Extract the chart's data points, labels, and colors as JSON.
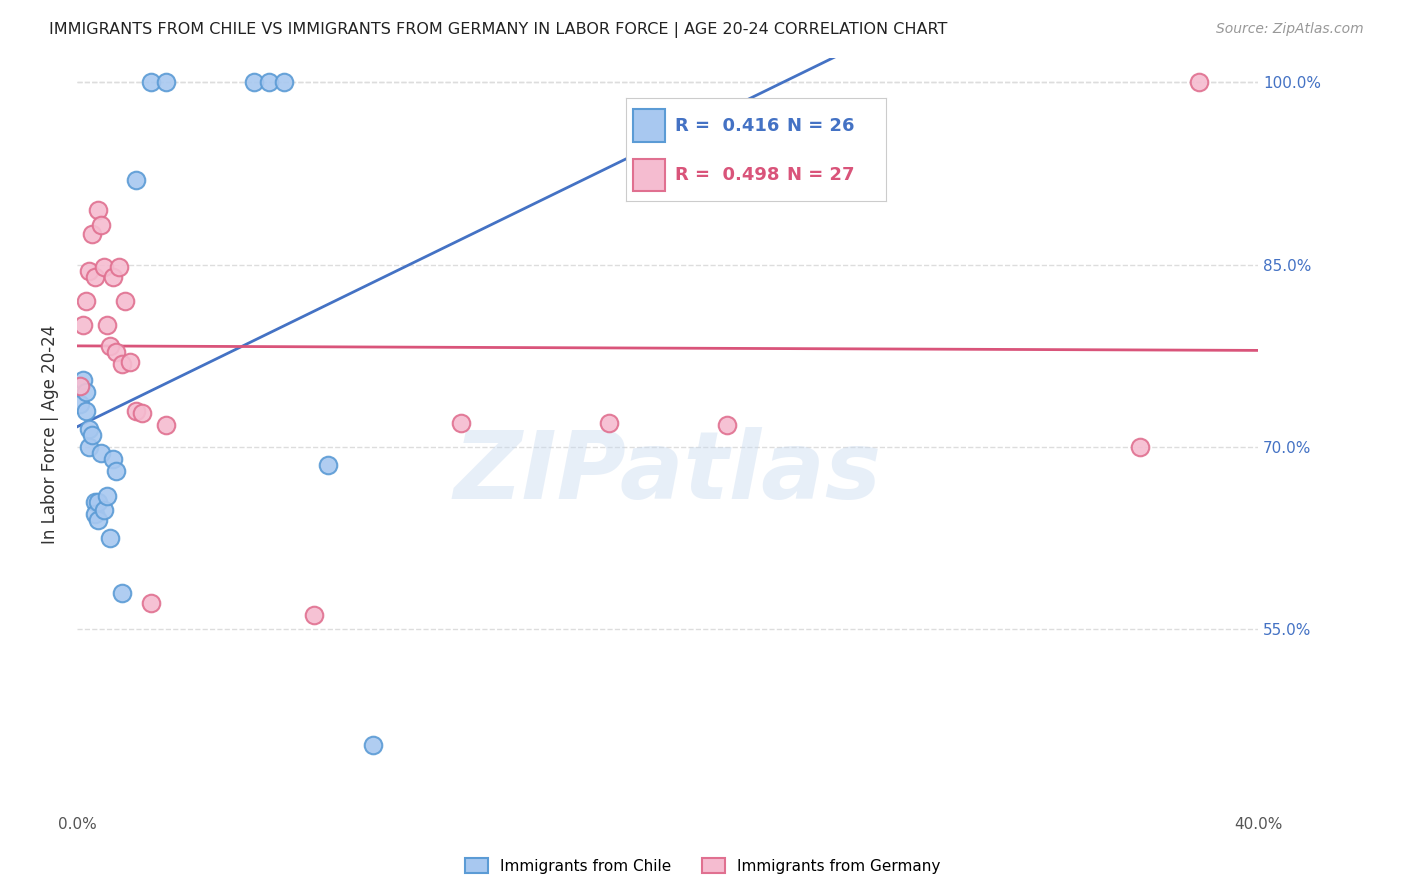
{
  "title": "IMMIGRANTS FROM CHILE VS IMMIGRANTS FROM GERMANY IN LABOR FORCE | AGE 20-24 CORRELATION CHART",
  "source": "Source: ZipAtlas.com",
  "ylabel": "In Labor Force | Age 20-24",
  "xlim": [
    0.0,
    0.4
  ],
  "ylim": [
    0.4,
    1.02
  ],
  "xticks": [
    0.0,
    0.05,
    0.1,
    0.15,
    0.2,
    0.25,
    0.3,
    0.35,
    0.4
  ],
  "xtick_labels": [
    "0.0%",
    "",
    "",
    "",
    "",
    "",
    "",
    "",
    "40.0%"
  ],
  "yticks": [
    0.55,
    0.7,
    0.85,
    1.0
  ],
  "ytick_labels": [
    "55.0%",
    "70.0%",
    "85.0%",
    "100.0%"
  ],
  "chile_fill": "#a8c8f0",
  "chile_edge": "#5b9bd5",
  "germany_fill": "#f5bcd0",
  "germany_edge": "#e07090",
  "trend_chile_color": "#4472c4",
  "trend_germany_color": "#d9547a",
  "R_chile": 0.416,
  "N_chile": 26,
  "R_germany": 0.498,
  "N_germany": 27,
  "chile_x": [
    0.001,
    0.002,
    0.003,
    0.003,
    0.004,
    0.004,
    0.005,
    0.006,
    0.006,
    0.007,
    0.007,
    0.008,
    0.009,
    0.01,
    0.011,
    0.012,
    0.013,
    0.015,
    0.02,
    0.025,
    0.03,
    0.06,
    0.065,
    0.07,
    0.085,
    0.1
  ],
  "chile_y": [
    0.735,
    0.755,
    0.745,
    0.73,
    0.715,
    0.7,
    0.71,
    0.655,
    0.645,
    0.64,
    0.655,
    0.695,
    0.648,
    0.66,
    0.625,
    0.69,
    0.68,
    0.58,
    0.92,
    1.0,
    1.0,
    1.0,
    1.0,
    1.0,
    0.685,
    0.455
  ],
  "germany_x": [
    0.001,
    0.002,
    0.003,
    0.004,
    0.005,
    0.006,
    0.007,
    0.008,
    0.009,
    0.01,
    0.011,
    0.012,
    0.013,
    0.014,
    0.015,
    0.016,
    0.018,
    0.02,
    0.022,
    0.025,
    0.03,
    0.08,
    0.13,
    0.18,
    0.22,
    0.36,
    0.38
  ],
  "germany_y": [
    0.75,
    0.8,
    0.82,
    0.845,
    0.875,
    0.84,
    0.895,
    0.883,
    0.848,
    0.8,
    0.783,
    0.84,
    0.778,
    0.848,
    0.768,
    0.82,
    0.77,
    0.73,
    0.728,
    0.572,
    0.718,
    0.562,
    0.72,
    0.72,
    0.718,
    0.7,
    1.0
  ],
  "watermark": "ZIPatlas",
  "background_color": "#ffffff",
  "grid_color": "#dddddd",
  "marker_size": 160,
  "trend_linewidth": 2.0,
  "title_fontsize": 11.5,
  "source_fontsize": 10,
  "tick_fontsize": 11,
  "ylabel_fontsize": 12
}
